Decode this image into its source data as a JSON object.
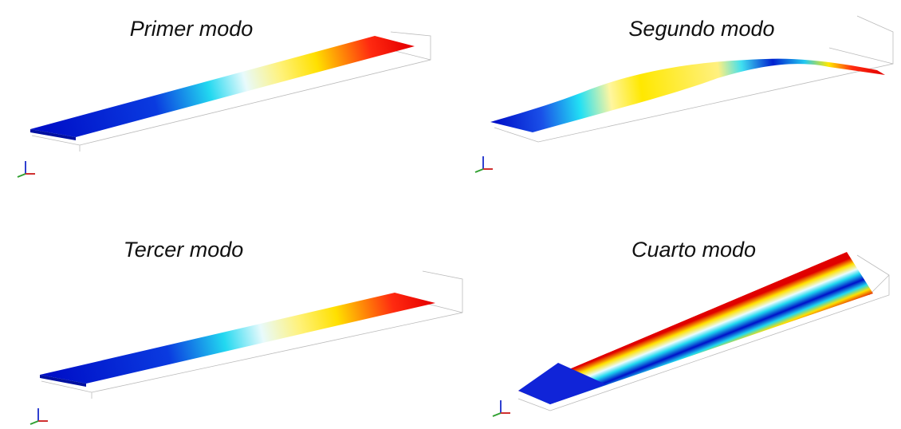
{
  "panels": [
    {
      "title": "Primer modo"
    },
    {
      "title": "Segundo modo"
    },
    {
      "title": "Tercer modo"
    },
    {
      "title": "Cuarto modo"
    }
  ]
}
